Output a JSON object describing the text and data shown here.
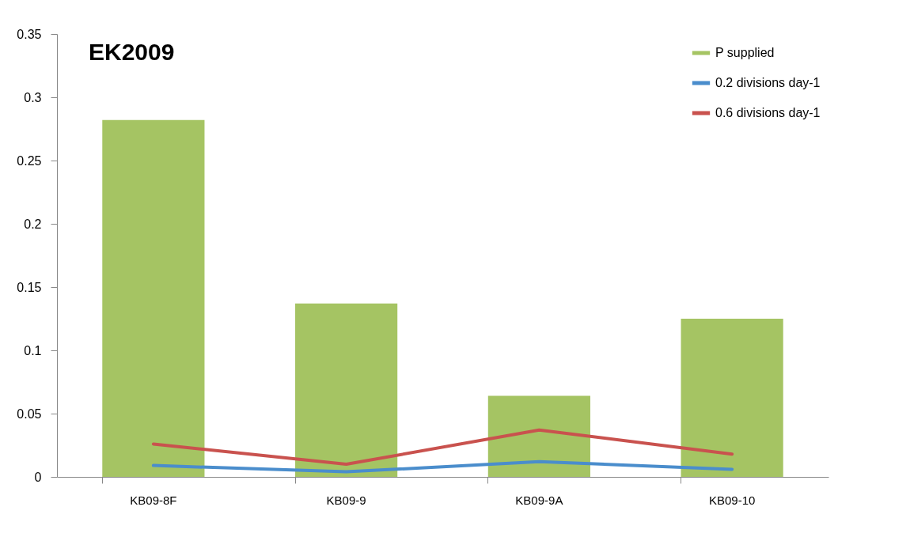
{
  "chart_data": {
    "type": "bar",
    "title": "EK2009",
    "categories": [
      "KB09-8F",
      "KB09-9",
      "KB09-9A",
      "KB09-10"
    ],
    "series": [
      {
        "name": "P supplied",
        "color": "#a5c463",
        "values": [
          0.282,
          0.137,
          0.064,
          0.125
        ]
      },
      {
        "name": "0.2 divisions day-1",
        "type": "line",
        "color": "#4a8dcc",
        "values": [
          0.009,
          0.004,
          0.012,
          0.006
        ]
      },
      {
        "name": "0.6 divisions day-1",
        "type": "line",
        "color": "#c9524e",
        "values": [
          0.026,
          0.01,
          0.037,
          0.018
        ]
      }
    ],
    "ylim": [
      0,
      0.35
    ],
    "yticks": [
      0,
      0.05,
      0.1,
      0.15,
      0.2,
      0.25,
      0.3,
      0.35
    ],
    "grid": false,
    "legend": "top right",
    "marker": "none",
    "line_style": "solid"
  }
}
